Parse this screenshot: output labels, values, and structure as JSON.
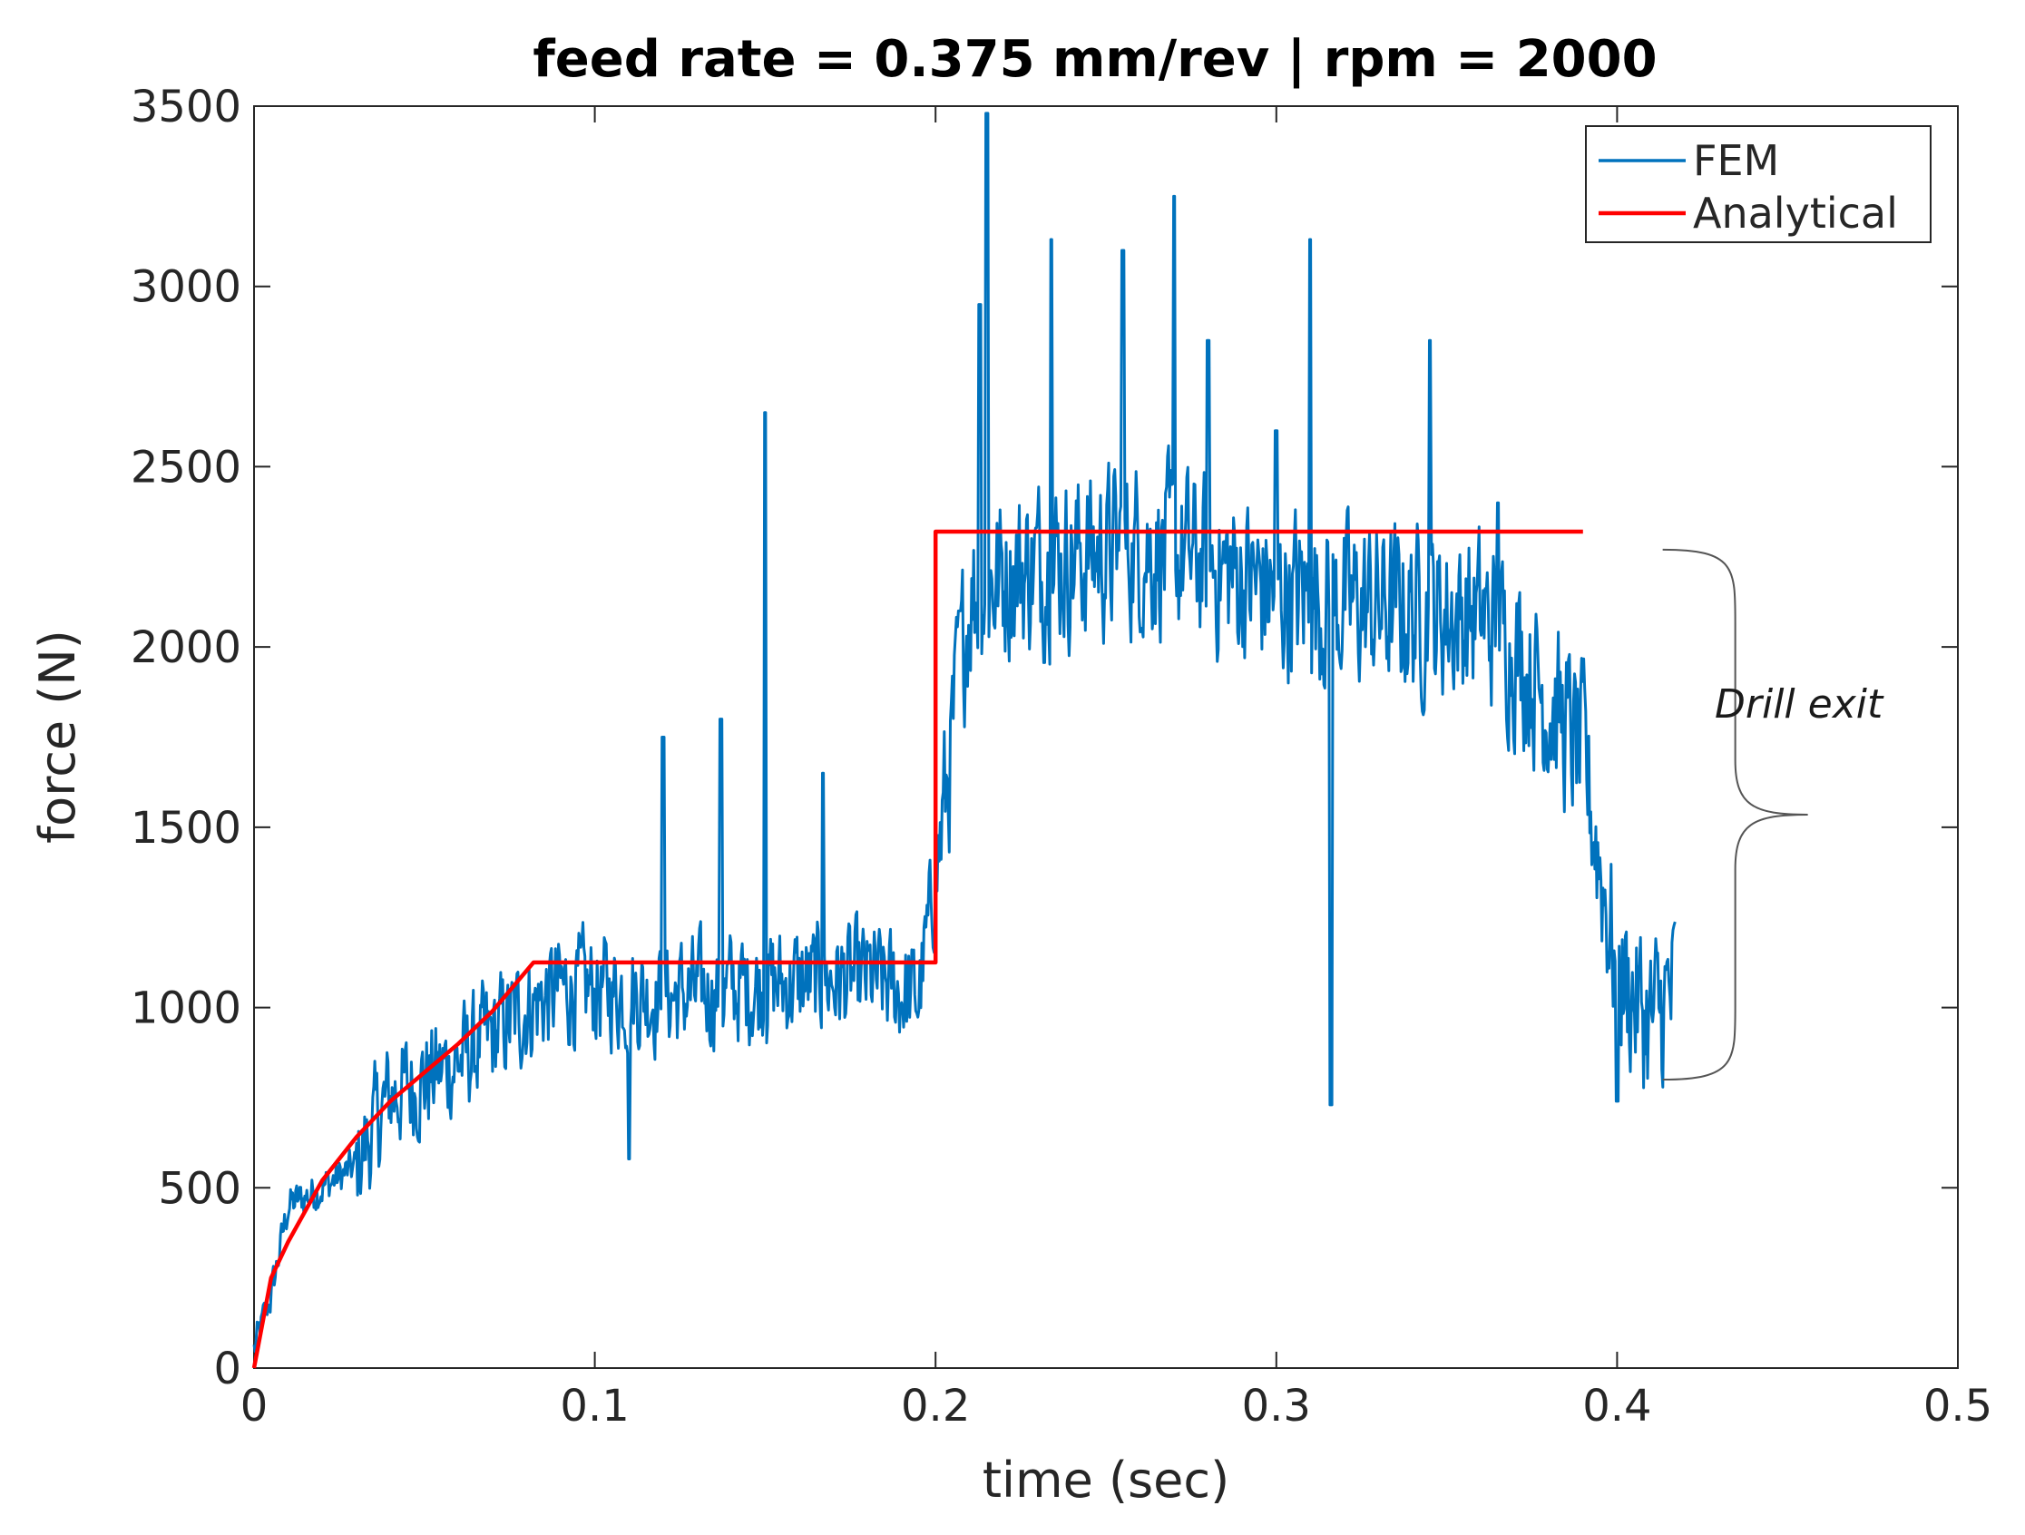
{
  "chart_data": {
    "type": "line",
    "title": "feed rate = 0.375 mm/rev | rpm = 2000",
    "xlabel": "time (sec)",
    "ylabel": "force (N)",
    "xlim": [
      0,
      0.5
    ],
    "ylim": [
      0,
      3500
    ],
    "xticks": [
      0,
      0.1,
      0.2,
      0.3,
      0.4,
      0.5
    ],
    "xtick_labels": [
      "0",
      "0.1",
      "0.2",
      "0.3",
      "0.4",
      "0.5"
    ],
    "yticks": [
      0,
      500,
      1000,
      1500,
      2000,
      2500,
      3000,
      3500
    ],
    "ytick_labels": [
      "0",
      "500",
      "1000",
      "1500",
      "2000",
      "2500",
      "3000",
      "3500"
    ],
    "grid": false,
    "legend_position": "top-right",
    "series": [
      {
        "name": "FEM",
        "color": "#0072BD",
        "noisy": true,
        "x_range": [
          0,
          0.417
        ],
        "baseline": [
          [
            0,
            50
          ],
          [
            0.005,
            200
          ],
          [
            0.01,
            450
          ],
          [
            0.02,
            500
          ],
          [
            0.03,
            560
          ],
          [
            0.04,
            760
          ],
          [
            0.05,
            800
          ],
          [
            0.06,
            850
          ],
          [
            0.07,
            920
          ],
          [
            0.08,
            1000
          ],
          [
            0.09,
            1050
          ],
          [
            0.1,
            1050
          ],
          [
            0.12,
            1030
          ],
          [
            0.14,
            1050
          ],
          [
            0.16,
            1070
          ],
          [
            0.18,
            1080
          ],
          [
            0.195,
            1030
          ],
          [
            0.2,
            1350
          ],
          [
            0.205,
            1750
          ],
          [
            0.21,
            2150
          ],
          [
            0.22,
            2200
          ],
          [
            0.24,
            2250
          ],
          [
            0.26,
            2280
          ],
          [
            0.28,
            2230
          ],
          [
            0.3,
            2150
          ],
          [
            0.32,
            2120
          ],
          [
            0.34,
            2100
          ],
          [
            0.36,
            2080
          ],
          [
            0.37,
            2000
          ],
          [
            0.38,
            1850
          ],
          [
            0.39,
            1700
          ],
          [
            0.4,
            1100
          ],
          [
            0.41,
            950
          ],
          [
            0.417,
            1050
          ]
        ],
        "spikes": [
          [
            0.15,
            2650
          ],
          [
            0.215,
            3480
          ],
          [
            0.213,
            2950
          ],
          [
            0.234,
            3130
          ],
          [
            0.27,
            3250
          ],
          [
            0.255,
            3100
          ],
          [
            0.31,
            3130
          ],
          [
            0.345,
            2850
          ],
          [
            0.316,
            730
          ],
          [
            0.4,
            740
          ],
          [
            0.11,
            580
          ],
          [
            0.137,
            1800
          ],
          [
            0.12,
            1750
          ],
          [
            0.167,
            1650
          ],
          [
            0.365,
            2400
          ],
          [
            0.28,
            2850
          ],
          [
            0.3,
            2600
          ],
          [
            0.207,
            2100
          ]
        ]
      },
      {
        "name": "Analytical",
        "color": "#FF0000",
        "x": [
          0,
          0.005,
          0.01,
          0.02,
          0.03,
          0.04,
          0.05,
          0.06,
          0.07,
          0.082,
          0.2,
          0.2,
          0.39
        ],
        "y": [
          0,
          250,
          350,
          520,
          640,
          740,
          820,
          900,
          990,
          1125,
          1125,
          2320,
          2320
        ]
      }
    ],
    "annotations": [
      {
        "text": "Drill exit",
        "type": "brace",
        "x_data": 0.44,
        "y_range": [
          800,
          2270
        ]
      }
    ]
  }
}
